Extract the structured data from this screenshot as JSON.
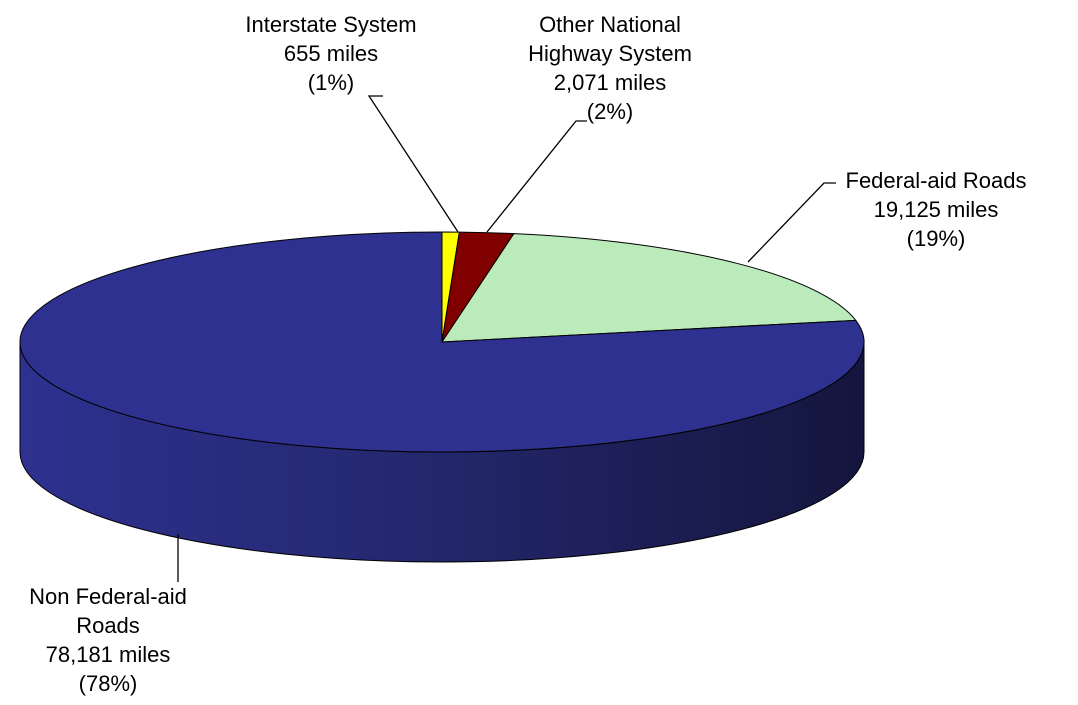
{
  "chart_data": {
    "type": "pie",
    "style": "3d",
    "title": "",
    "unit": "miles",
    "slices": [
      {
        "label_lines": [
          "Interstate System",
          "655 miles",
          "(1%)"
        ],
        "value": 655,
        "percent": 1,
        "color": "#ffff00"
      },
      {
        "label_lines": [
          "Other National",
          "Highway System",
          "2,071 miles",
          "(2%)"
        ],
        "value": 2071,
        "percent": 2,
        "color": "#800000"
      },
      {
        "label_lines": [
          "Federal-aid Roads",
          "19,125 miles",
          "(19%)"
        ],
        "value": 19125,
        "percent": 19,
        "color": "#bbeabb"
      },
      {
        "label_lines": [
          "Non Federal-aid",
          "Roads",
          "78,181 miles",
          "(78%)"
        ],
        "value": 78181,
        "percent": 78,
        "color": "#2e318f"
      }
    ]
  }
}
